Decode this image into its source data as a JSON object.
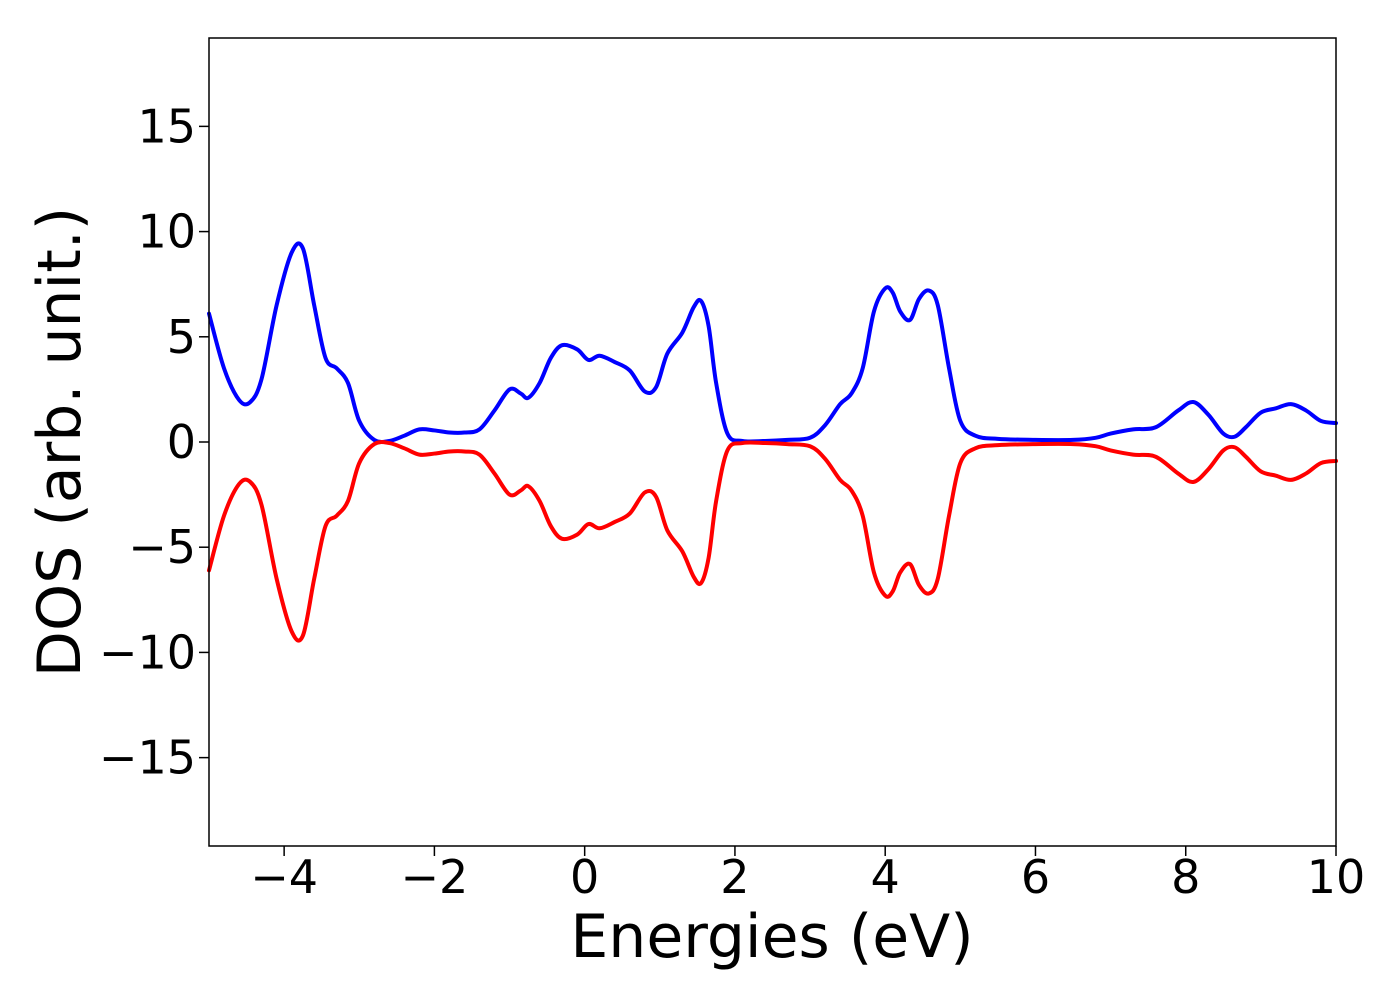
{
  "chart_data": {
    "type": "line",
    "title": "",
    "xlabel": "Energies (eV)",
    "ylabel": "DOS (arb. unit.)",
    "xlim": [
      -5,
      10
    ],
    "ylim": [
      -19.2,
      19.2
    ],
    "x_ticks": [
      -4,
      -2,
      0,
      2,
      4,
      6,
      8,
      10
    ],
    "x_tick_labels": [
      "−4",
      "−2",
      "0",
      "2",
      "4",
      "6",
      "8",
      "10"
    ],
    "y_ticks": [
      -15,
      -10,
      -5,
      0,
      5,
      10,
      15
    ],
    "y_tick_labels": [
      "−15",
      "−10",
      "−5",
      "0",
      "5",
      "10",
      "15"
    ],
    "grid": false,
    "legend": "none",
    "series": [
      {
        "color": "#0000ff",
        "x": [
          -5.0,
          -4.8,
          -4.6,
          -4.45,
          -4.3,
          -4.1,
          -3.9,
          -3.75,
          -3.6,
          -3.45,
          -3.3,
          -3.15,
          -3.0,
          -2.8,
          -2.6,
          -2.4,
          -2.2,
          -2.0,
          -1.8,
          -1.6,
          -1.4,
          -1.2,
          -1.0,
          -0.85,
          -0.75,
          -0.6,
          -0.45,
          -0.3,
          -0.1,
          0.05,
          0.2,
          0.4,
          0.6,
          0.8,
          0.95,
          1.1,
          1.3,
          1.45,
          1.55,
          1.65,
          1.75,
          1.9,
          2.1,
          2.4,
          2.7,
          3.0,
          3.2,
          3.4,
          3.55,
          3.7,
          3.85,
          4.0,
          4.1,
          4.2,
          4.33,
          4.45,
          4.58,
          4.7,
          4.85,
          5.0,
          5.2,
          5.5,
          6.0,
          6.5,
          6.8,
          7.0,
          7.3,
          7.6,
          7.9,
          8.1,
          8.3,
          8.5,
          8.65,
          8.8,
          9.0,
          9.2,
          9.4,
          9.6,
          9.8,
          10.0
        ],
        "y": [
          6.1,
          3.5,
          2.0,
          1.9,
          3.0,
          6.5,
          9.0,
          9.2,
          6.5,
          4.0,
          3.5,
          2.8,
          1.0,
          0.1,
          0.05,
          0.3,
          0.6,
          0.55,
          0.45,
          0.45,
          0.6,
          1.5,
          2.5,
          2.3,
          2.1,
          2.8,
          4.0,
          4.6,
          4.4,
          3.9,
          4.1,
          3.8,
          3.4,
          2.4,
          2.6,
          4.2,
          5.2,
          6.4,
          6.7,
          5.5,
          2.8,
          0.4,
          0.05,
          0.05,
          0.1,
          0.2,
          0.8,
          1.8,
          2.3,
          3.5,
          6.2,
          7.3,
          7.1,
          6.2,
          5.8,
          6.8,
          7.2,
          6.5,
          3.5,
          1.0,
          0.3,
          0.15,
          0.1,
          0.1,
          0.2,
          0.4,
          0.6,
          0.7,
          1.5,
          1.9,
          1.3,
          0.4,
          0.25,
          0.7,
          1.4,
          1.6,
          1.8,
          1.5,
          1.0,
          0.9
        ]
      },
      {
        "color": "#ff0000",
        "x": [
          -5.0,
          -4.8,
          -4.6,
          -4.45,
          -4.3,
          -4.1,
          -3.9,
          -3.75,
          -3.6,
          -3.45,
          -3.3,
          -3.15,
          -3.0,
          -2.8,
          -2.6,
          -2.4,
          -2.2,
          -2.0,
          -1.8,
          -1.6,
          -1.4,
          -1.2,
          -1.0,
          -0.85,
          -0.75,
          -0.6,
          -0.45,
          -0.3,
          -0.1,
          0.05,
          0.2,
          0.4,
          0.6,
          0.8,
          0.95,
          1.1,
          1.3,
          1.45,
          1.55,
          1.65,
          1.75,
          1.9,
          2.1,
          2.4,
          2.7,
          3.0,
          3.2,
          3.4,
          3.55,
          3.7,
          3.85,
          4.0,
          4.1,
          4.2,
          4.33,
          4.45,
          4.58,
          4.7,
          4.85,
          5.0,
          5.2,
          5.5,
          6.0,
          6.5,
          6.8,
          7.0,
          7.3,
          7.6,
          7.9,
          8.1,
          8.3,
          8.5,
          8.65,
          8.8,
          9.0,
          9.2,
          9.4,
          9.6,
          9.8,
          10.0
        ],
        "y": [
          -6.1,
          -3.5,
          -2.0,
          -1.9,
          -3.0,
          -6.5,
          -9.0,
          -9.2,
          -6.5,
          -4.0,
          -3.5,
          -2.8,
          -1.0,
          -0.1,
          -0.05,
          -0.3,
          -0.6,
          -0.55,
          -0.45,
          -0.45,
          -0.6,
          -1.5,
          -2.5,
          -2.3,
          -2.1,
          -2.8,
          -4.0,
          -4.6,
          -4.4,
          -3.9,
          -4.1,
          -3.8,
          -3.4,
          -2.4,
          -2.6,
          -4.2,
          -5.2,
          -6.4,
          -6.7,
          -5.5,
          -2.8,
          -0.4,
          -0.05,
          -0.05,
          -0.1,
          -0.2,
          -0.8,
          -1.8,
          -2.3,
          -3.5,
          -6.2,
          -7.3,
          -7.1,
          -6.2,
          -5.8,
          -6.8,
          -7.2,
          -6.5,
          -3.5,
          -1.0,
          -0.3,
          -0.15,
          -0.1,
          -0.1,
          -0.2,
          -0.4,
          -0.6,
          -0.7,
          -1.5,
          -1.9,
          -1.3,
          -0.4,
          -0.25,
          -0.7,
          -1.4,
          -1.6,
          -1.8,
          -1.5,
          -1.0,
          -0.9
        ]
      }
    ]
  }
}
